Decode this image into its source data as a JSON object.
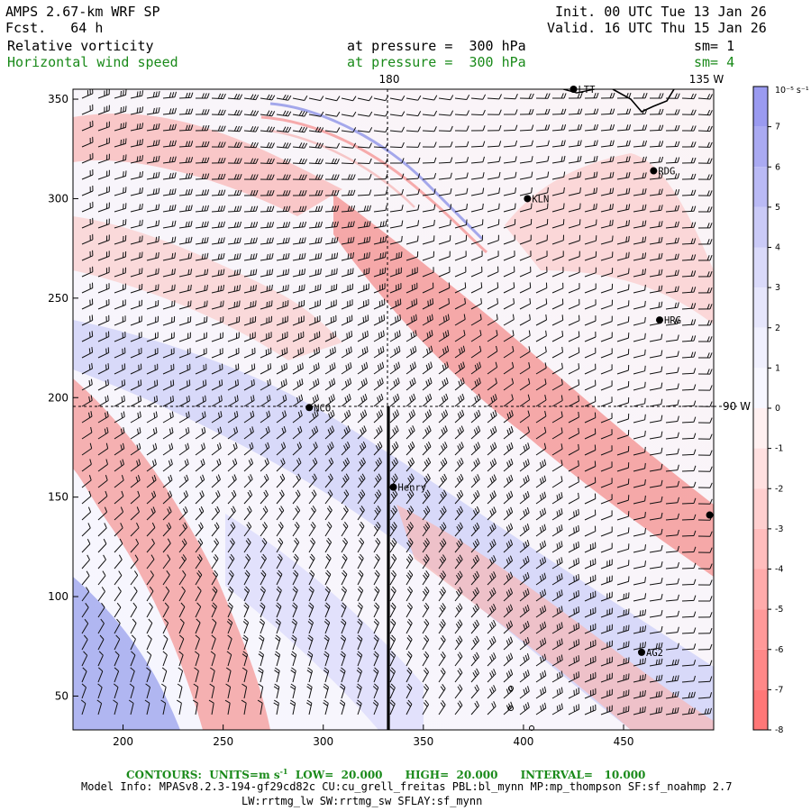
{
  "header": {
    "title": "AMPS 2.67-km WRF SP",
    "fcst_label": "Fcst.",
    "fcst_value": "64 h",
    "init_label": "Init.",
    "init_value": "00 UTC Tue 13 Jan 26",
    "valid_label": "Valid.",
    "valid_value": "16 UTC Thu 15 Jan 26",
    "field1_name": "Relative vorticity",
    "field1_pressure_label": "at pressure =",
    "field1_pressure_value": "300 hPa",
    "field1_sm": "sm= 1",
    "field2_name": "Horizontal wind speed",
    "field2_pressure_label": "at pressure =",
    "field2_pressure_value": "300 hPa",
    "field2_sm": "sm= 4"
  },
  "map": {
    "x_axis": {
      "range": [
        175,
        495
      ],
      "ticks": [
        200,
        250,
        300,
        350,
        400,
        450
      ]
    },
    "y_axis": {
      "range": [
        33,
        355
      ],
      "ticks": [
        50,
        100,
        150,
        200,
        250,
        300,
        350
      ]
    },
    "meridian_labels": {
      "lon_180": "180",
      "lon_135w": "135 W",
      "lat_90w": "90 W"
    },
    "stations": [
      {
        "name": "LTT",
        "x": 425,
        "y": 355
      },
      {
        "name": "RDG",
        "x": 465,
        "y": 314
      },
      {
        "name": "KLN",
        "x": 402,
        "y": 300
      },
      {
        "name": "HRG",
        "x": 468,
        "y": 239
      },
      {
        "name": "NCO",
        "x": 293,
        "y": 195
      },
      {
        "name": "Henry",
        "x": 335,
        "y": 155
      },
      {
        "name": "AG2",
        "x": 459,
        "y": 72
      },
      {
        "name": "",
        "x": 493,
        "y": 141
      }
    ],
    "colorbar": {
      "units": "10⁻⁵ s⁻¹",
      "labels": [
        "7",
        "6",
        "5",
        "4",
        "3",
        "2",
        "1",
        "0",
        "-1",
        "-2",
        "-3",
        "-4",
        "-5",
        "-6",
        "-7",
        "-8"
      ],
      "colors": [
        "#9a9af0",
        "#aaaaf2",
        "#babaf5",
        "#cacaf7",
        "#dadafa",
        "#e6e6fc",
        "#f0f0fe",
        "#f7f7ff",
        "#fff0f0",
        "#ffe0e0",
        "#ffcfcf",
        "#ffbdbd",
        "#ffabab",
        "#ff9999",
        "#ff8888",
        "#ff7777"
      ]
    }
  },
  "footer": {
    "contours_label": "CONTOURS:",
    "units_label": "UNITS=m s",
    "units_exp": "-1",
    "low": "LOW=  20.000",
    "high": "HIGH=  20.000",
    "interval": "INTERVAL=   10.000",
    "model_info_line1": "Model Info: MPASv8.2.3-194-gf29cd82c CU:cu_grell_freitas PBL:bl_mynn MP:mp_thompson SF:sf_noahmp 2.7",
    "model_info_line2": "LW:rrtmg_lw SW:rrtmg_sw SFLAY:sf_mynn"
  }
}
